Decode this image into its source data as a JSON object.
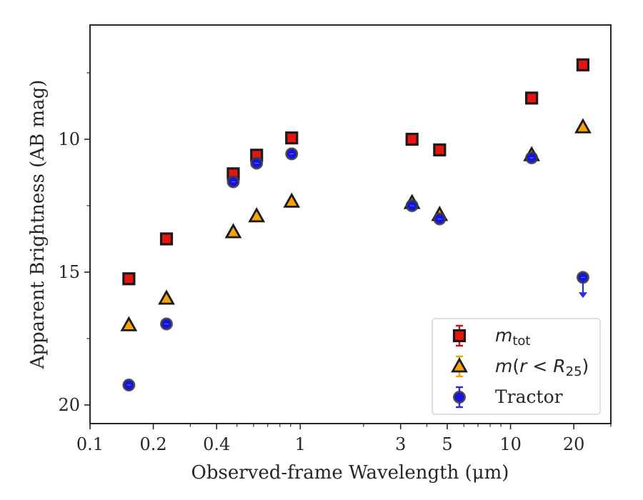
{
  "chart_data": {
    "type": "scatter",
    "xlabel": "Observed-frame Wavelength (μm)",
    "ylabel": "Apparent Brightness (AB mag)",
    "xscale": "log",
    "xlim": [
      0.1,
      30
    ],
    "ylim": [
      20.7,
      5.7
    ],
    "y_inverted": true,
    "grid": false,
    "legend_position": "lower-right",
    "x_tick_labels": [
      {
        "value": 0.1,
        "label": "0.1"
      },
      {
        "value": 0.2,
        "label": "0.2"
      },
      {
        "value": 0.4,
        "label": "0.4"
      },
      {
        "value": 1,
        "label": "1"
      },
      {
        "value": 3,
        "label": "3"
      },
      {
        "value": 5,
        "label": "5"
      },
      {
        "value": 10,
        "label": "10"
      },
      {
        "value": 20,
        "label": "20"
      }
    ],
    "x_minor_ticks": [
      0.3,
      0.5,
      0.6,
      0.7,
      0.8,
      0.9,
      2,
      4,
      6,
      7,
      8,
      9,
      30
    ],
    "y_tick_labels": [
      {
        "value": 10,
        "label": "10"
      },
      {
        "value": 15,
        "label": "15"
      },
      {
        "value": 20,
        "label": "20"
      }
    ],
    "y_minor_ticks": [
      7.5,
      12.5,
      17.5
    ],
    "series": [
      {
        "key": "mtot",
        "marker": "square",
        "color": "#e8140e",
        "edge_color": "#1a1a1a",
        "legend_label": {
          "base": "m",
          "sub": "tot"
        },
        "legend_errorbar_color": "#cc1010",
        "points": [
          {
            "x": 0.153,
            "y": 15.25
          },
          {
            "x": 0.231,
            "y": 13.75
          },
          {
            "x": 0.48,
            "y": 11.3
          },
          {
            "x": 0.62,
            "y": 10.6
          },
          {
            "x": 0.91,
            "y": 9.95
          },
          {
            "x": 3.4,
            "y": 10.0
          },
          {
            "x": 4.6,
            "y": 10.4
          },
          {
            "x": 12.6,
            "y": 8.45
          },
          {
            "x": 22.1,
            "y": 7.2
          }
        ]
      },
      {
        "key": "mr25",
        "marker": "triangle",
        "color": "#f5a300",
        "edge_color": "#1a1a1a",
        "legend_label": {
          "base": "m",
          "paren_open": "(",
          "var": "r",
          "op": " < ",
          "var2": "R",
          "sub": "25",
          "paren_close": ")"
        },
        "legend_errorbar_color": "#f0a800",
        "points": [
          {
            "x": 0.153,
            "y": 17.0
          },
          {
            "x": 0.231,
            "y": 16.0
          },
          {
            "x": 0.48,
            "y": 13.5
          },
          {
            "x": 0.62,
            "y": 12.9
          },
          {
            "x": 0.91,
            "y": 12.35
          },
          {
            "x": 3.4,
            "y": 12.4
          },
          {
            "x": 4.6,
            "y": 12.85
          },
          {
            "x": 12.6,
            "y": 10.6
          },
          {
            "x": 22.1,
            "y": 9.55
          }
        ]
      },
      {
        "key": "tractor",
        "marker": "circle",
        "color": "#1414e6",
        "edge_color": "#3d3d3d",
        "legend_label": {
          "text": "Tractor"
        },
        "legend_errorbar_color": "#2a2ae8",
        "points": [
          {
            "x": 0.153,
            "y": 19.25
          },
          {
            "x": 0.231,
            "y": 16.95
          },
          {
            "x": 0.48,
            "y": 11.6
          },
          {
            "x": 0.62,
            "y": 10.9
          },
          {
            "x": 0.91,
            "y": 10.55
          },
          {
            "x": 3.4,
            "y": 12.5
          },
          {
            "x": 4.6,
            "y": 13.0
          },
          {
            "x": 12.6,
            "y": 10.7
          },
          {
            "x": 22.1,
            "y": 15.2,
            "upper_limit": true,
            "limit_to": 15.95
          }
        ]
      }
    ]
  }
}
